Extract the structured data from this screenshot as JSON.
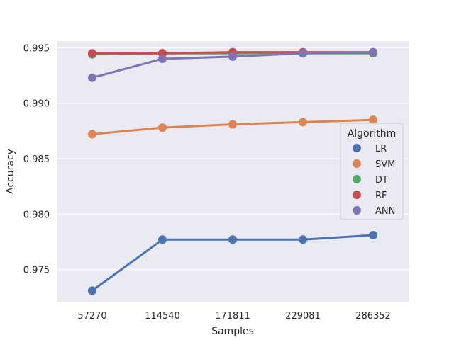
{
  "chart_data": {
    "type": "line",
    "title": "",
    "xlabel": "Samples",
    "ylabel": "Accuracy",
    "categories": [
      "57270",
      "114540",
      "171811",
      "229081",
      "286352"
    ],
    "ylim": [
      0.9721,
      0.9956
    ],
    "yticks": [
      "0.975",
      "0.980",
      "0.985",
      "0.990",
      "0.995"
    ],
    "ytick_values": [
      0.975,
      0.98,
      0.985,
      0.99,
      0.995
    ],
    "grid": true,
    "legend": {
      "title": "Algorithm",
      "placement": "center-right"
    },
    "series": [
      {
        "name": "LR",
        "color": "#4c72b0",
        "values": [
          0.9731,
          0.9777,
          0.9777,
          0.9777,
          0.9781
        ]
      },
      {
        "name": "SVM",
        "color": "#dd8452",
        "values": [
          0.9872,
          0.9878,
          0.9881,
          0.9883,
          0.9885
        ]
      },
      {
        "name": "DT",
        "color": "#55a868",
        "values": [
          0.9944,
          0.9945,
          0.9945,
          0.9945,
          0.9945
        ]
      },
      {
        "name": "RF",
        "color": "#c44e52",
        "values": [
          0.9945,
          0.9945,
          0.9946,
          0.9946,
          0.9946
        ]
      },
      {
        "name": "ANN",
        "color": "#8172b3",
        "values": [
          0.9923,
          0.994,
          0.9942,
          0.9945,
          0.9946
        ]
      }
    ]
  }
}
